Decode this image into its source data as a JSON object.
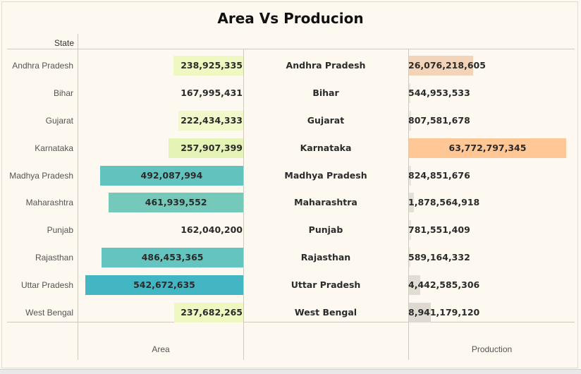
{
  "title": "Area Vs Producion",
  "row_header": "State",
  "chart_data": {
    "type": "bar",
    "title": "Area Vs Producion",
    "row_header": "State",
    "categories": [
      "Andhra Pradesh",
      "Bihar",
      "Gujarat",
      "Karnataka",
      "Madhya Pradesh",
      "Maharashtra",
      "Punjab",
      "Rajasthan",
      "Uttar Pradesh",
      "West Bengal"
    ],
    "series": [
      {
        "name": "Area",
        "values": [
          238925335,
          167995431,
          222434333,
          257907399,
          492087994,
          461939552,
          162040200,
          486453365,
          542672635,
          237682265
        ],
        "labels": [
          "238,925,335",
          "167,995,431",
          "222,434,333",
          "257,907,399",
          "492,087,994",
          "461,939,552",
          "162,040,200",
          "486,453,365",
          "542,672,635",
          "237,682,265"
        ],
        "colors": [
          "#eef8c0",
          "#fdf8f0",
          "#f1f8ca",
          "#e6f3b6",
          "#62c3be",
          "#74c9bb",
          "#fdf8f0",
          "#64c4bf",
          "#43b6c4",
          "#eef8c0"
        ],
        "max": 542672635
      },
      {
        "name": "Production",
        "values": [
          26076218605,
          544953533,
          807581678,
          63772797345,
          824851676,
          1878564918,
          781551409,
          589164332,
          4442585306,
          8941179120
        ],
        "labels": [
          "26,076,218,605",
          "544,953,533",
          "807,581,678",
          "63,772,797,345",
          "824,851,676",
          "1,878,564,918",
          "781,551,409",
          "589,164,332",
          "4,442,585,306",
          "8,941,179,120"
        ],
        "colors": [
          "#f4d4b8",
          "#ece8e0",
          "#ebe7df",
          "#ffc796",
          "#e9e5dd",
          "#e4e0d8",
          "#ebe7df",
          "#ece8e0",
          "#e1ddd5",
          "#dedad2"
        ],
        "max": 63772797345
      }
    ],
    "xlabel_left": "Area",
    "xlabel_right": "Production"
  }
}
